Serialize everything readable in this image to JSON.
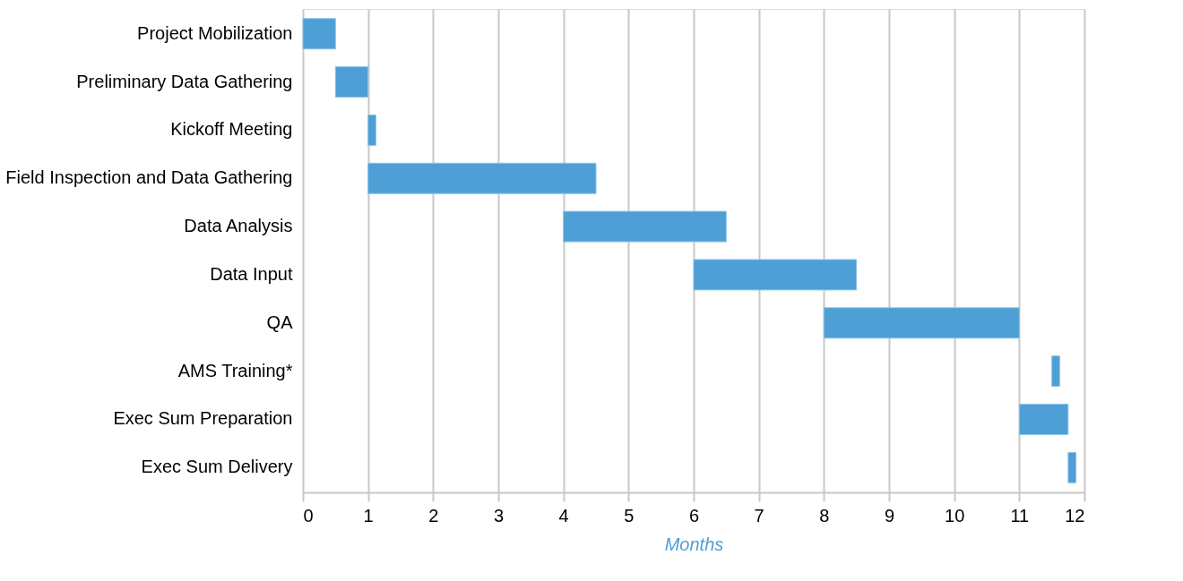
{
  "chart_data": {
    "type": "bar",
    "orientation": "horizontal",
    "xlabel": "Months",
    "categories": [
      "Project Mobilization",
      "Preliminary Data Gathering",
      "Kickoff Meeting",
      "Field Inspection and Data Gathering",
      "Data Analysis",
      "Data Input",
      "QA",
      "AMS Training*",
      "Exec Sum Preparation",
      "Exec Sum Delivery"
    ],
    "base": [
      0,
      0.5,
      1,
      1,
      4,
      6,
      8,
      11.5,
      11,
      11.75
    ],
    "values": [
      0.5,
      0.5,
      0.12,
      3.5,
      2.5,
      2.5,
      3,
      0.12,
      0.75,
      0.12
    ],
    "color": "#4e9fd6",
    "xlim": [
      0,
      12
    ],
    "xticks": [
      0,
      1,
      2,
      3,
      4,
      5,
      6,
      7,
      8,
      9,
      10,
      11,
      12
    ],
    "grid": "x"
  }
}
